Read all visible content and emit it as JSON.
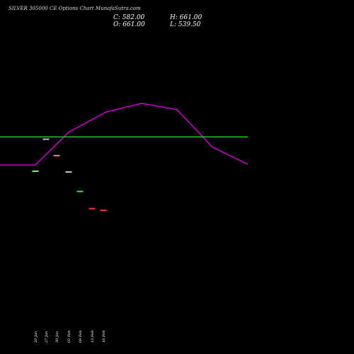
{
  "title": "SILVER 305000 CE Options Chart MunafaSutra.com",
  "ohlc": {
    "close": "C: 582.00",
    "high": "H: 661.00",
    "open": "O: 661.00",
    "low": "L: 539.50"
  },
  "chart_data": {
    "type": "line",
    "x": [
      "20 Jan",
      "27 Jan",
      "30 Jan",
      "02 Feb",
      "09 Feb",
      "13 Feb",
      "16 Feb"
    ],
    "line_series": {
      "color": "#cc00cc",
      "points": [
        {
          "x": "20 Jan",
          "y": 582
        },
        {
          "x": "27 Jan",
          "y": 582
        },
        {
          "x": "02 Feb",
          "y": 624
        },
        {
          "x": "09 Feb",
          "y": 650
        },
        {
          "x": "13 Feb",
          "y": 661
        },
        {
          "x": "16 Feb",
          "y": 653
        },
        {
          "x": "16 Feb+",
          "y": 605
        },
        {
          "x": "end",
          "y": 583
        }
      ]
    },
    "reference_line": {
      "y": 618,
      "color": "#22cc22"
    },
    "candles": [
      {
        "x": "20 Jan",
        "price": 574,
        "color": "#99ee99"
      },
      {
        "x": "27 Jan",
        "price": 615,
        "color": "#bbbbbb"
      },
      {
        "x": "30 Jan",
        "price": 594,
        "color": "#ff7777"
      },
      {
        "x": "02 Feb",
        "price": 573,
        "color": "#cccccc"
      },
      {
        "x": "09 Feb",
        "price": 548,
        "color": "#33ee33"
      },
      {
        "x": "13 Feb",
        "price": 526,
        "color": "#ff3333"
      },
      {
        "x": "16 Feb",
        "price": 524,
        "color": "#ff3333"
      }
    ],
    "ylim": [
      490,
      700
    ]
  }
}
